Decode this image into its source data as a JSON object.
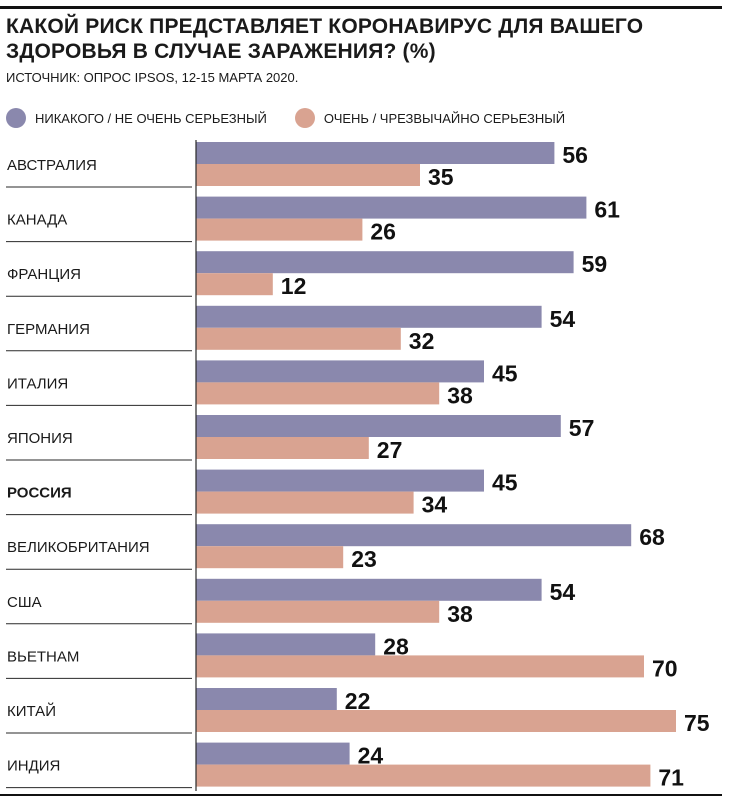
{
  "header": {
    "title": "КАКОЙ РИСК ПРЕДСТАВЛЯЕТ КОРОНАВИРУС ДЛЯ ВАШЕГО ЗДОРОВЬЯ В СЛУЧАЕ ЗАРАЖЕНИЯ? (%)",
    "source": "ИСТОЧНИК:  ОПРОС IPSOS,  12-15 МАРТА 2020."
  },
  "colors": {
    "series1": "#8a88ad",
    "series2": "#d9a391"
  },
  "chart_data": {
    "type": "bar",
    "orientation": "horizontal",
    "title": "КАКОЙ РИСК ПРЕДСТАВЛЯЕТ КОРОНАВИРУС ДЛЯ ВАШЕГО ЗДОРОВЬЯ В СЛУЧАЕ ЗАРАЖЕНИЯ? (%)",
    "xlabel": "",
    "ylabel": "",
    "xlim": [
      0,
      100
    ],
    "grid": false,
    "legend_position": "top-left",
    "highlighted_category": "РОССИЯ",
    "categories": [
      "АВСТРАЛИЯ",
      "КАНАДА",
      "ФРАНЦИЯ",
      "ГЕРМАНИЯ",
      "ИТАЛИЯ",
      "ЯПОНИЯ",
      "РОССИЯ",
      "ВЕЛИКОБРИТАНИЯ",
      "США",
      "ВЬЕТНАМ",
      "КИТАЙ",
      "ИНДИЯ"
    ],
    "series": [
      {
        "name": "НИКАКОГО / НЕ ОЧЕНЬ СЕРЬЕЗНЫЙ",
        "values": [
          56,
          61,
          59,
          54,
          45,
          57,
          45,
          68,
          54,
          28,
          22,
          24
        ]
      },
      {
        "name": "ОЧЕНЬ / ЧРЕЗВЫЧАЙНО СЕРЬЕЗНЫЙ",
        "values": [
          35,
          26,
          12,
          32,
          38,
          27,
          34,
          23,
          38,
          70,
          75,
          71
        ]
      }
    ]
  }
}
